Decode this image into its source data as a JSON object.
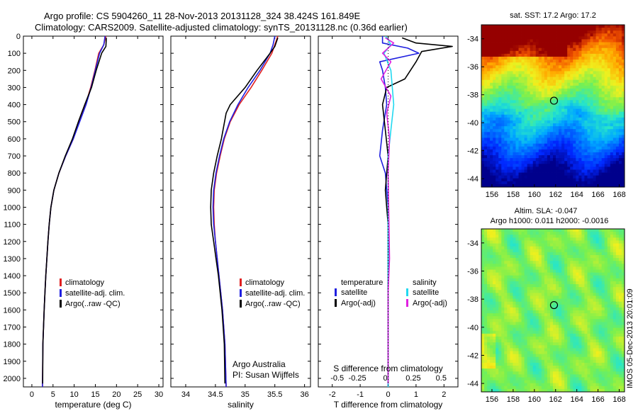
{
  "header": {
    "line1": "Argo profile: CS 5904260_11 28-Nov-2013 20131128_324 38.424S 161.849E",
    "line2": "Climatology: CARS2009. Satellite-adjusted climatology: synTS_20131128.nc (0.36d earlier)"
  },
  "credit": {
    "org": "Argo Australia",
    "pi": "PI: Susan Wijffels"
  },
  "side_stamp": "IMOS 05-Dec-2013 20:01:09",
  "colors": {
    "climatology": "#e02020",
    "satellite": "#1f1fe0",
    "argo": "#000000",
    "sal_satellite": "#22d8f0",
    "sal_argo": "#e020e0"
  },
  "chart_data": [
    {
      "type": "line",
      "name": "temperature-profile",
      "xlabel": "temperature (deg C)",
      "xlim": [
        -2,
        31
      ],
      "ylim": [
        0,
        2050
      ],
      "y_inverted": true,
      "xticks": [
        0,
        5,
        10,
        15,
        20,
        25,
        30
      ],
      "yticks": [
        0,
        100,
        200,
        300,
        400,
        500,
        600,
        700,
        800,
        900,
        1000,
        1100,
        1200,
        1300,
        1400,
        1500,
        1600,
        1700,
        1800,
        1900,
        2000
      ],
      "legend": [
        "climatology",
        "satellite-adj. clim.",
        "Argo(..raw -QC)"
      ],
      "series": [
        {
          "name": "climatology",
          "color": "#e02020",
          "x": [
            17.5,
            17.0,
            15.8,
            14.9,
            13.9,
            12.7,
            11.2,
            9.8,
            8.0,
            6.4,
            5.2,
            4.5,
            4.1,
            3.8,
            3.55,
            3.3,
            3.1,
            2.9,
            2.75,
            2.6,
            2.5
          ],
          "y": [
            0,
            50,
            100,
            200,
            300,
            400,
            500,
            600,
            700,
            800,
            900,
            1000,
            1100,
            1200,
            1300,
            1400,
            1500,
            1600,
            1700,
            1800,
            2050
          ]
        },
        {
          "name": "satellite-adj. clim.",
          "color": "#1f1fe0",
          "x": [
            17.3,
            17.0,
            16.0,
            15.0,
            14.0,
            12.8,
            11.3,
            9.8,
            8.0,
            6.4,
            5.2,
            4.5,
            4.1,
            3.8,
            3.55,
            3.3,
            3.1,
            2.9,
            2.75,
            2.6,
            2.5
          ],
          "y": [
            0,
            50,
            100,
            200,
            300,
            400,
            500,
            600,
            700,
            800,
            900,
            1000,
            1100,
            1200,
            1300,
            1400,
            1500,
            1600,
            1700,
            1800,
            2050
          ]
        },
        {
          "name": "Argo(..raw -QC)",
          "color": "#000000",
          "x": [
            17.6,
            17.5,
            16.5,
            15.2,
            14.1,
            12.5,
            11.0,
            9.6,
            7.9,
            6.4,
            5.2,
            4.5,
            4.1,
            3.8,
            3.55,
            3.3,
            3.1,
            2.9,
            2.75,
            2.6,
            2.55
          ],
          "y": [
            10,
            60,
            100,
            200,
            300,
            400,
            500,
            600,
            700,
            800,
            900,
            1000,
            1100,
            1200,
            1300,
            1400,
            1500,
            1600,
            1700,
            1800,
            2030
          ]
        }
      ]
    },
    {
      "type": "line",
      "name": "salinity-profile",
      "xlabel": "salinity",
      "xlim": [
        33.75,
        36.1
      ],
      "ylim": [
        0,
        2050
      ],
      "y_inverted": true,
      "xticks": [
        34,
        34.5,
        35,
        35.5,
        36
      ],
      "xticklabels": [
        "34",
        "34.5",
        "35",
        "35.5",
        "36"
      ],
      "legend": [
        "climatology",
        "satellite-adj. clim.",
        "Argo(..raw -QC)"
      ],
      "series": [
        {
          "name": "climatology",
          "color": "#e02020",
          "x": [
            35.55,
            35.5,
            35.45,
            35.28,
            35.1,
            34.9,
            34.75,
            34.65,
            34.58,
            34.52,
            34.48,
            34.47,
            34.48,
            34.5,
            34.53,
            34.56,
            34.59,
            34.62,
            34.64,
            34.66,
            34.68
          ],
          "y": [
            0,
            50,
            100,
            200,
            300,
            400,
            500,
            600,
            700,
            800,
            900,
            1000,
            1100,
            1200,
            1300,
            1400,
            1500,
            1600,
            1700,
            1800,
            2050
          ]
        },
        {
          "name": "satellite-adj. clim.",
          "color": "#1f1fe0",
          "x": [
            35.5,
            35.47,
            35.42,
            35.25,
            35.05,
            34.88,
            34.74,
            34.64,
            34.57,
            34.51,
            34.47,
            34.46,
            34.47,
            34.5,
            34.53,
            34.56,
            34.59,
            34.62,
            34.64,
            34.66,
            34.68
          ],
          "y": [
            0,
            50,
            100,
            200,
            300,
            400,
            500,
            600,
            700,
            800,
            900,
            1000,
            1100,
            1200,
            1300,
            1400,
            1500,
            1600,
            1700,
            1800,
            2050
          ]
        },
        {
          "name": "Argo(..raw -QC)",
          "color": "#000000",
          "x": [
            35.55,
            35.5,
            35.42,
            35.2,
            35.0,
            34.75,
            34.68,
            34.6,
            34.53,
            34.47,
            34.43,
            34.42,
            34.43,
            34.47,
            34.51,
            34.55,
            34.58,
            34.61,
            34.63,
            34.65,
            34.66
          ],
          "y": [
            10,
            60,
            100,
            200,
            300,
            400,
            450,
            600,
            700,
            800,
            900,
            1000,
            1100,
            1200,
            1300,
            1400,
            1500,
            1600,
            1700,
            1800,
            2030
          ]
        }
      ]
    },
    {
      "type": "line",
      "name": "difference-profile",
      "xlabel": "T difference from climatology",
      "xlabel_top": "S difference from climatology",
      "xlim": [
        -2.5,
        2.5
      ],
      "ylim": [
        0,
        2050
      ],
      "y_inverted": true,
      "xticks": [
        -2,
        -1,
        0,
        1,
        2
      ],
      "xticks_top_labels": [
        "-0.5",
        "-0.25",
        "0",
        "0.25",
        "0.5"
      ],
      "legend_temperature": [
        "temperature",
        "satellite",
        "Argo(-adj)"
      ],
      "legend_salinity": [
        "salinity",
        "satellite",
        "Argo(-adj)"
      ],
      "series": [
        {
          "name": "temperature satellite",
          "color": "#1f1fe0",
          "x": [
            -0.2,
            -0.2,
            0.7,
            1.1,
            -0.3,
            -0.2,
            -0.1,
            -0.05,
            -0.2,
            -0.3,
            -0.1,
            -0.05,
            0,
            0,
            0,
            0,
            0,
            0,
            0,
            0
          ],
          "y": [
            0,
            40,
            70,
            100,
            150,
            200,
            300,
            400,
            550,
            700,
            800,
            900,
            1000,
            1100,
            1200,
            1300,
            1500,
            1700,
            1900,
            2050
          ]
        },
        {
          "name": "temperature Argo(-adj)",
          "color": "#000000",
          "x": [
            0.5,
            1.0,
            2.3,
            1.2,
            1.0,
            0.6,
            -0.05,
            -0.2,
            -0.1,
            0,
            -0.1,
            -0.05,
            0,
            0,
            0,
            0,
            0,
            0,
            0
          ],
          "y": [
            10,
            40,
            60,
            90,
            150,
            250,
            300,
            400,
            550,
            700,
            900,
            1000,
            1100,
            1200,
            1300,
            1400,
            1600,
            1800,
            2030
          ]
        },
        {
          "name": "salinity satellite",
          "color": "#22d8f0",
          "x": [
            -0.1,
            0,
            0.1,
            -0.15,
            0.1,
            0.2,
            0.1,
            0,
            0,
            0,
            0,
            0,
            0,
            0,
            0
          ],
          "y": [
            0,
            20,
            50,
            100,
            200,
            400,
            550,
            700,
            900,
            1100,
            1300,
            1500,
            1700,
            1900,
            2050
          ]
        },
        {
          "name": "salinity Argo(-adj)",
          "color": "#e020e0",
          "x": [
            -0.1,
            0.2,
            -0.2,
            0.1,
            -0.25,
            0.1,
            -0.05,
            0.05,
            0,
            0.02,
            0.05,
            0,
            0,
            0
          ],
          "y": [
            10,
            40,
            100,
            150,
            250,
            350,
            450,
            600,
            800,
            1000,
            1300,
            1500,
            1800,
            2030
          ]
        }
      ]
    },
    {
      "type": "heatmap",
      "name": "sst-map",
      "title": "sat. SST: 17.2  Argo: 17.2",
      "xlim": [
        155,
        168.5
      ],
      "ylim": [
        -44.6,
        -33
      ],
      "xticks": [
        156,
        158,
        160,
        162,
        164,
        166,
        168
      ],
      "yticks": [
        -34,
        -36,
        -38,
        -40,
        -42,
        -44
      ],
      "marker": {
        "lon": 161.849,
        "lat": -38.424
      }
    },
    {
      "type": "heatmap",
      "name": "sla-map",
      "title_line1": "Altim. SLA: -0.047",
      "title_line2": "Argo h1000: 0.011 h2000: -0.0016",
      "xlim": [
        155,
        168.5
      ],
      "ylim": [
        -44.6,
        -33
      ],
      "xticks": [
        156,
        158,
        160,
        162,
        164,
        166,
        168
      ],
      "yticks": [
        -34,
        -36,
        -38,
        -40,
        -42,
        -44
      ],
      "marker": {
        "lon": 161.849,
        "lat": -38.424
      }
    }
  ]
}
